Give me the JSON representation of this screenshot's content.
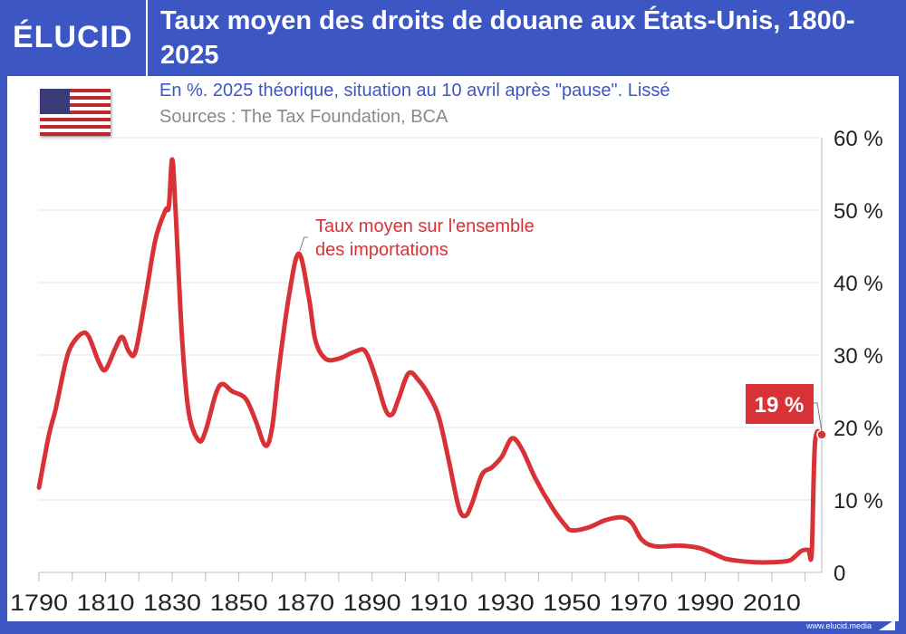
{
  "brand": {
    "logo": "ÉLUCID",
    "footer_url": "www.elucid.media"
  },
  "header": {
    "title": "Taux moyen des droits de douane aux États-Unis, 1800-2025"
  },
  "subtitle": "En %. 2025 théorique, situation au 10 avril après \"pause\". Lissé",
  "sources": "Sources : The Tax Foundation, BCA",
  "flag": "us-flag-icon",
  "colors": {
    "background": "#3c56c4",
    "series": "#d93236",
    "subtitle": "#3c56c4"
  },
  "chart_data": {
    "type": "line",
    "title": "Taux moyen des droits de douane aux États-Unis, 1800-2025",
    "xlabel": "",
    "ylabel": "",
    "xlim": [
      1790,
      2025
    ],
    "ylim": [
      0,
      60
    ],
    "grid": true,
    "y_axis_side": "right",
    "x_ticks": [
      "1790",
      "1810",
      "1830",
      "1850",
      "1870",
      "1890",
      "1910",
      "1930",
      "1950",
      "1970",
      "1990",
      "2010"
    ],
    "y_ticks": [
      "0",
      "10 %",
      "20 %",
      "30 %",
      "40 %",
      "50 %",
      "60 %"
    ],
    "series": [
      {
        "points": [
          [
            1790,
            11.7
          ],
          [
            1793,
            19
          ],
          [
            1795,
            22.5
          ],
          [
            1798,
            29
          ],
          [
            1800,
            31.5
          ],
          [
            1803,
            33
          ],
          [
            1805,
            32.5
          ],
          [
            1808,
            29
          ],
          [
            1810,
            28
          ],
          [
            1813,
            31
          ],
          [
            1815,
            32.5
          ],
          [
            1817,
            30.5
          ],
          [
            1819,
            30.5
          ],
          [
            1822,
            38
          ],
          [
            1825,
            46
          ],
          [
            1828,
            50
          ],
          [
            1829,
            50.5
          ],
          [
            1830,
            57
          ],
          [
            1831,
            50
          ],
          [
            1833,
            32
          ],
          [
            1835,
            22
          ],
          [
            1838,
            18.2
          ],
          [
            1840,
            19.5
          ],
          [
            1843,
            24.5
          ],
          [
            1845,
            26
          ],
          [
            1848,
            25
          ],
          [
            1852,
            24
          ],
          [
            1855,
            21
          ],
          [
            1858,
            17.5
          ],
          [
            1860,
            20
          ],
          [
            1862,
            28
          ],
          [
            1865,
            38
          ],
          [
            1868,
            44
          ],
          [
            1871,
            38
          ],
          [
            1873,
            32
          ],
          [
            1876,
            29.5
          ],
          [
            1880,
            29.5
          ],
          [
            1885,
            30.5
          ],
          [
            1888,
            30.5
          ],
          [
            1891,
            27
          ],
          [
            1894,
            22.5
          ],
          [
            1896,
            21.8
          ],
          [
            1898,
            24
          ],
          [
            1901,
            27.5
          ],
          [
            1904,
            26.5
          ],
          [
            1907,
            24.5
          ],
          [
            1910,
            21.5
          ],
          [
            1913,
            15.5
          ],
          [
            1916,
            9
          ],
          [
            1918,
            7.8
          ],
          [
            1920,
            9.5
          ],
          [
            1923,
            13.5
          ],
          [
            1926,
            14.5
          ],
          [
            1929,
            16
          ],
          [
            1932,
            18.5
          ],
          [
            1935,
            17
          ],
          [
            1939,
            13
          ],
          [
            1944,
            9
          ],
          [
            1948,
            6.5
          ],
          [
            1950,
            5.8
          ],
          [
            1955,
            6.2
          ],
          [
            1960,
            7.2
          ],
          [
            1965,
            7.6
          ],
          [
            1968,
            6.8
          ],
          [
            1971,
            4.5
          ],
          [
            1975,
            3.6
          ],
          [
            1982,
            3.7
          ],
          [
            1988,
            3.4
          ],
          [
            1992,
            2.7
          ],
          [
            1996,
            1.9
          ],
          [
            2000,
            1.6
          ],
          [
            2005,
            1.4
          ],
          [
            2010,
            1.4
          ],
          [
            2015,
            1.6
          ],
          [
            2017,
            2.2
          ],
          [
            2019,
            3
          ],
          [
            2021,
            3.1
          ],
          [
            2022,
            2.8
          ],
          [
            2023,
            18
          ],
          [
            2025,
            19
          ]
        ]
      }
    ],
    "annotations": [
      {
        "text_line1": "Taux moyen sur l'ensemble",
        "text_line2": "des importations",
        "x": 1868,
        "y": 44
      },
      {
        "text": "19 %",
        "x": 2025,
        "y": 19
      }
    ]
  }
}
